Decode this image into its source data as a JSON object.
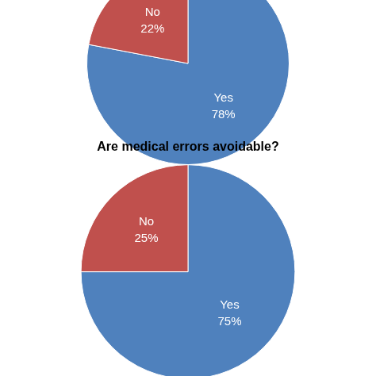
{
  "chart_data": [
    {
      "type": "pie",
      "categories": [
        "Yes",
        "No"
      ],
      "values": [
        78,
        22
      ],
      "value_labels": [
        "78%",
        "22%"
      ],
      "colors": [
        "#4f81bd",
        "#c0504d"
      ],
      "data_labels": true
    },
    {
      "type": "pie",
      "title": "Are medical errors avoidable?",
      "categories": [
        "Yes",
        "No"
      ],
      "values": [
        75,
        25
      ],
      "value_labels": [
        "75%",
        "25%"
      ],
      "colors": [
        "#4f81bd",
        "#c0504d"
      ],
      "data_labels": true
    }
  ]
}
